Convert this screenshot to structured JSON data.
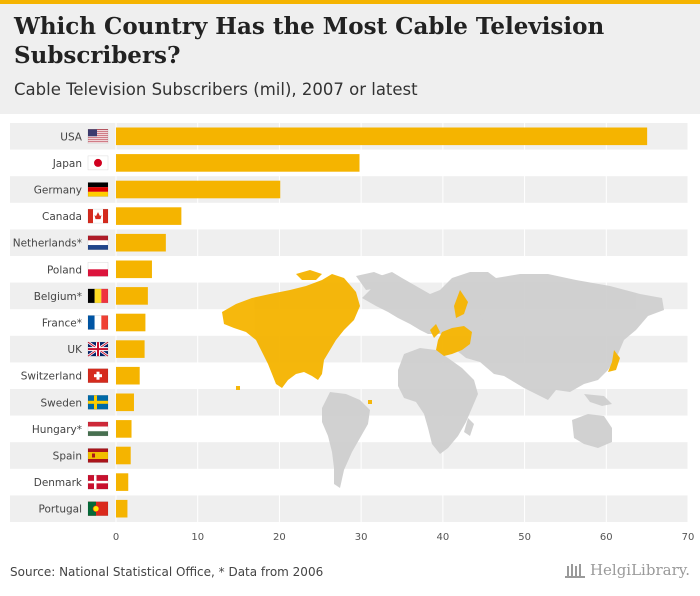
{
  "header": {
    "title": "Which Country Has the Most Cable Television Subscribers?",
    "subtitle": "Cable Television Subscribers (mil), 2007 or latest"
  },
  "footer": {
    "source": "Source: National Statistical Office, * Data from 2006",
    "brand": "HelgiLibrary."
  },
  "colors": {
    "bar": "#f5b400",
    "map": "#cfcfcf",
    "map_highlight": "#f5b400",
    "stripe": "#efefef"
  },
  "chart_data": {
    "type": "bar",
    "orientation": "horizontal",
    "title": "Which Country Has the Most Cable Television Subscribers?",
    "subtitle": "Cable Television Subscribers (mil), 2007 or latest",
    "categories": [
      "USA",
      "Japan",
      "Germany",
      "Canada",
      "Netherlands*",
      "Poland",
      "Belgium*",
      "France*",
      "UK",
      "Switzerland",
      "Sweden",
      "Hungary*",
      "Spain",
      "Denmark",
      "Portugal"
    ],
    "flags": [
      "us",
      "jp",
      "de",
      "ca",
      "nl",
      "pl",
      "be",
      "fr",
      "uk",
      "ch",
      "se",
      "hu",
      "es",
      "dk",
      "pt"
    ],
    "values": [
      65.0,
      29.8,
      20.1,
      8.0,
      6.1,
      4.4,
      3.9,
      3.6,
      3.5,
      2.9,
      2.2,
      1.9,
      1.8,
      1.5,
      1.4
    ],
    "xlim": [
      0,
      70
    ],
    "xticks": [
      0,
      10,
      20,
      30,
      40,
      50,
      60,
      70
    ],
    "xlabel": "",
    "ylabel": "",
    "grid": true
  }
}
